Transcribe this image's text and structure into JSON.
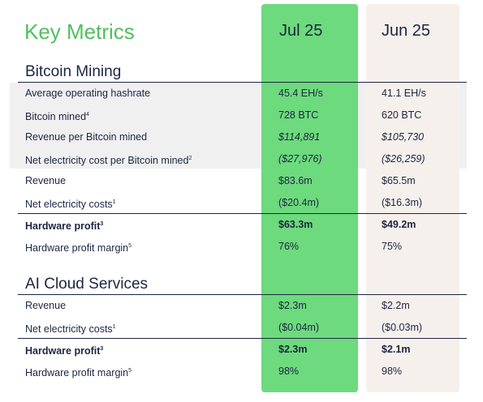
{
  "title": "Key Metrics",
  "columns": [
    "Jul 25",
    "Jun 25"
  ],
  "sections": [
    {
      "title": "Bitcoin Mining",
      "rows": [
        {
          "label": "Average operating hashrate",
          "values": [
            "45.4 EH/s",
            "41.1 EH/s"
          ]
        },
        {
          "label": "Bitcoin mined",
          "footnote": "4",
          "values": [
            "728 BTC",
            "620 BTC"
          ]
        },
        {
          "label": "Revenue per Bitcoin mined",
          "style": "italic",
          "values": [
            "$114,891",
            "$105,730"
          ]
        },
        {
          "label": "Net electricity cost per Bitcoin mined",
          "footnote": "2",
          "style": "italic",
          "values": [
            "($27,976)",
            "($26,259)"
          ]
        },
        {
          "label": "Revenue",
          "values": [
            "$83.6m",
            "$65.5m"
          ]
        },
        {
          "label": "Net electricity costs",
          "footnote": "1",
          "values": [
            "($20.4m)",
            "($16.3m)"
          ]
        },
        {
          "label": "Hardware profit",
          "footnote": "3",
          "style": "bold",
          "values": [
            "$63.3m",
            "$49.2m"
          ]
        },
        {
          "label": "Hardware profit margin",
          "footnote": "5",
          "values": [
            "76%",
            "75%"
          ]
        }
      ]
    },
    {
      "title": "AI Cloud Services",
      "rows": [
        {
          "label": "Revenue",
          "values": [
            "$2.3m",
            "$2.2m"
          ]
        },
        {
          "label": "Net electricity costs",
          "footnote": "1",
          "values": [
            "($0.04m)",
            "($0.03m)"
          ]
        },
        {
          "label": "Hardware profit",
          "footnote": "3",
          "style": "bold",
          "values": [
            "$2.3m",
            "$2.1m"
          ]
        },
        {
          "label": "Hardware profit margin",
          "footnote": "5",
          "values": [
            "98%",
            "98%"
          ]
        }
      ]
    }
  ]
}
